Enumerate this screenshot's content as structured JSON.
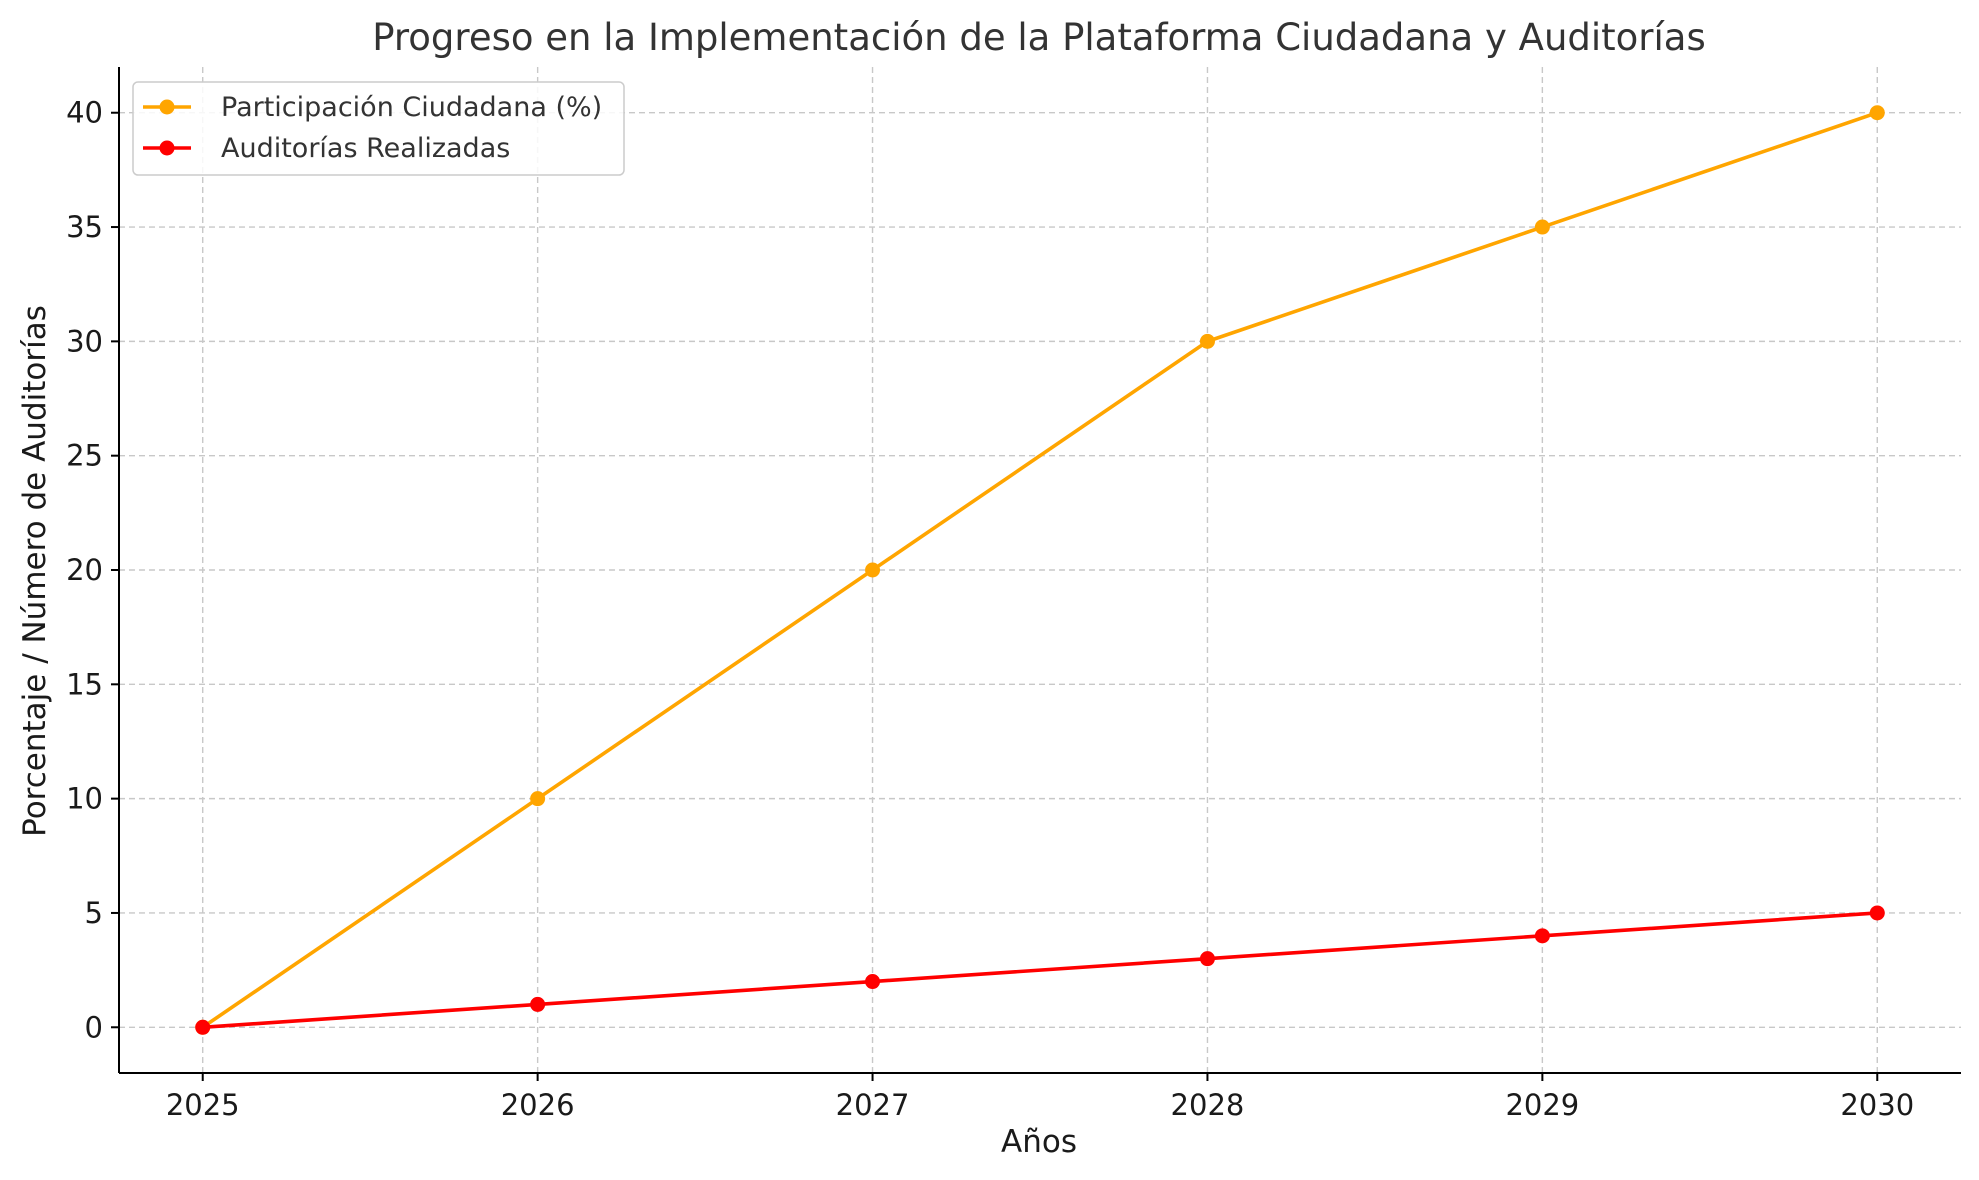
{
  "chart_data": {
    "type": "line",
    "title": "Progreso en la Implementación de la Plataforma Ciudadana y Auditorías",
    "xlabel": "Años",
    "ylabel": "Porcentaje / Número de Auditorías",
    "x": [
      2025,
      2026,
      2027,
      2028,
      2029,
      2030
    ],
    "x_ticks": [
      "2025",
      "2026",
      "2027",
      "2028",
      "2029",
      "2030"
    ],
    "y_ticks": [
      "0",
      "5",
      "10",
      "15",
      "20",
      "25",
      "30",
      "35",
      "40"
    ],
    "xlim": [
      2024.75,
      2030.25
    ],
    "ylim": [
      -2,
      42
    ],
    "grid": true,
    "legend_position": "top-left",
    "series": [
      {
        "name": "Participación Ciudadana (%)",
        "color": "#FFA500",
        "values": [
          0,
          10,
          20,
          30,
          35,
          40
        ]
      },
      {
        "name": "Auditorías Realizadas",
        "color": "#FF0000",
        "values": [
          0,
          1,
          2,
          3,
          4,
          5
        ]
      }
    ]
  }
}
